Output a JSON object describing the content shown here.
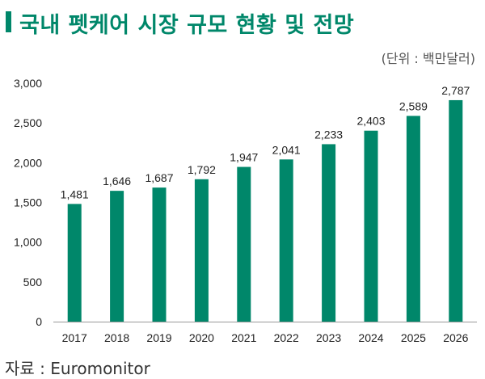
{
  "header": {
    "title": "국내 펫케어 시장 규모 현황 및 전망",
    "unit": "(단위 : 백만달러)"
  },
  "footer": {
    "source": "자료 : Euromonitor"
  },
  "colors": {
    "accent": "#00876A",
    "bar": "#00876A",
    "axis": "#999999"
  },
  "chart_data": {
    "type": "bar",
    "title": "국내 펫케어 시장 규모 현황 및 전망",
    "ylabel": "(단위 : 백만달러)",
    "categories": [
      "2017",
      "2018",
      "2019",
      "2020",
      "2021",
      "2022",
      "2023",
      "2024",
      "2025",
      "2026"
    ],
    "values": [
      1481,
      1646,
      1687,
      1792,
      1947,
      2041,
      2233,
      2403,
      2589,
      2787
    ],
    "data_labels": [
      "1,481",
      "1,646",
      "1,687",
      "1,792",
      "1,947",
      "2,041",
      "2,233",
      "2,403",
      "2,589",
      "2,787"
    ],
    "ylim": [
      0,
      3000
    ],
    "yticks": [
      0,
      500,
      1000,
      1500,
      2000,
      2500,
      3000
    ],
    "ytick_labels": [
      "0",
      "500",
      "1,000",
      "1,500",
      "2,000",
      "2,500",
      "3,000"
    ],
    "grid": false,
    "legend": "none"
  }
}
